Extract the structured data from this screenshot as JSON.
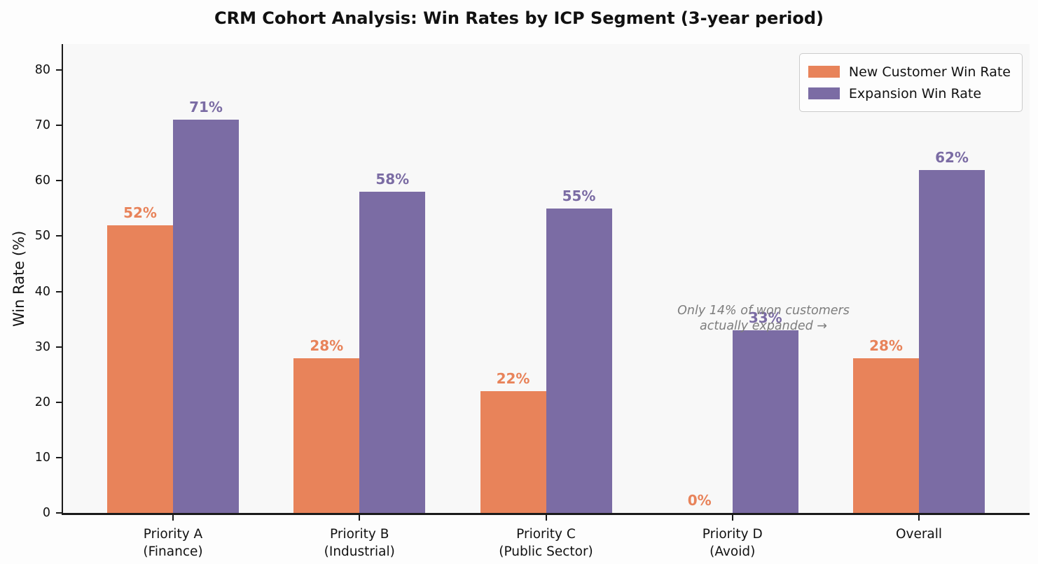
{
  "chart_data": {
    "type": "bar",
    "title": "CRM Cohort Analysis: Win Rates by ICP Segment (3-year period)",
    "ylabel": "Win Rate (%)",
    "xlabel": "",
    "categories": [
      {
        "label": "Priority A",
        "sublabel": "(Finance)"
      },
      {
        "label": "Priority B",
        "sublabel": "(Industrial)"
      },
      {
        "label": "Priority C",
        "sublabel": "(Public Sector)"
      },
      {
        "label": "Priority D",
        "sublabel": "(Avoid)"
      },
      {
        "label": "Overall",
        "sublabel": ""
      }
    ],
    "series": [
      {
        "name": "New Customer Win Rate",
        "color": "#e8835a",
        "values": [
          52,
          28,
          22,
          0,
          28
        ]
      },
      {
        "name": "Expansion Win Rate",
        "color": "#7b6ca4",
        "values": [
          71,
          58,
          55,
          33,
          62
        ]
      }
    ],
    "value_label_suffix": "%",
    "yticks": [
      0,
      10,
      20,
      30,
      40,
      50,
      60,
      70,
      80
    ],
    "ylim": [
      0,
      84.7
    ],
    "grid": false,
    "legend_position": "top-right",
    "annotation": {
      "lines": [
        "Only 14% of won customers",
        "actually expanded →"
      ],
      "color": "#7d7d7d"
    }
  },
  "colors": {
    "figure_background": "#fdfdfd",
    "axes_background": "#f8f8f8",
    "spine": "#1a1a1a"
  }
}
